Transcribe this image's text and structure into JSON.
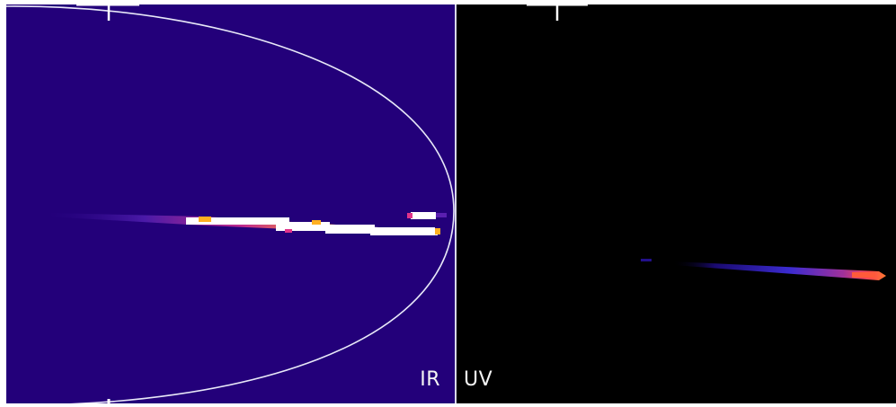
{
  "panels": {
    "ir": {
      "label": "IR",
      "background": "#23007a"
    },
    "uv": {
      "label": "UV",
      "background": "#000000"
    }
  },
  "colors": {
    "outline": "#e8e8f8",
    "divider": "#d9d9ea",
    "heat_low": "#5a1fb0",
    "heat_mid": "#e0338a",
    "heat_high": "#ffb020",
    "heat_max": "#ffffff"
  }
}
